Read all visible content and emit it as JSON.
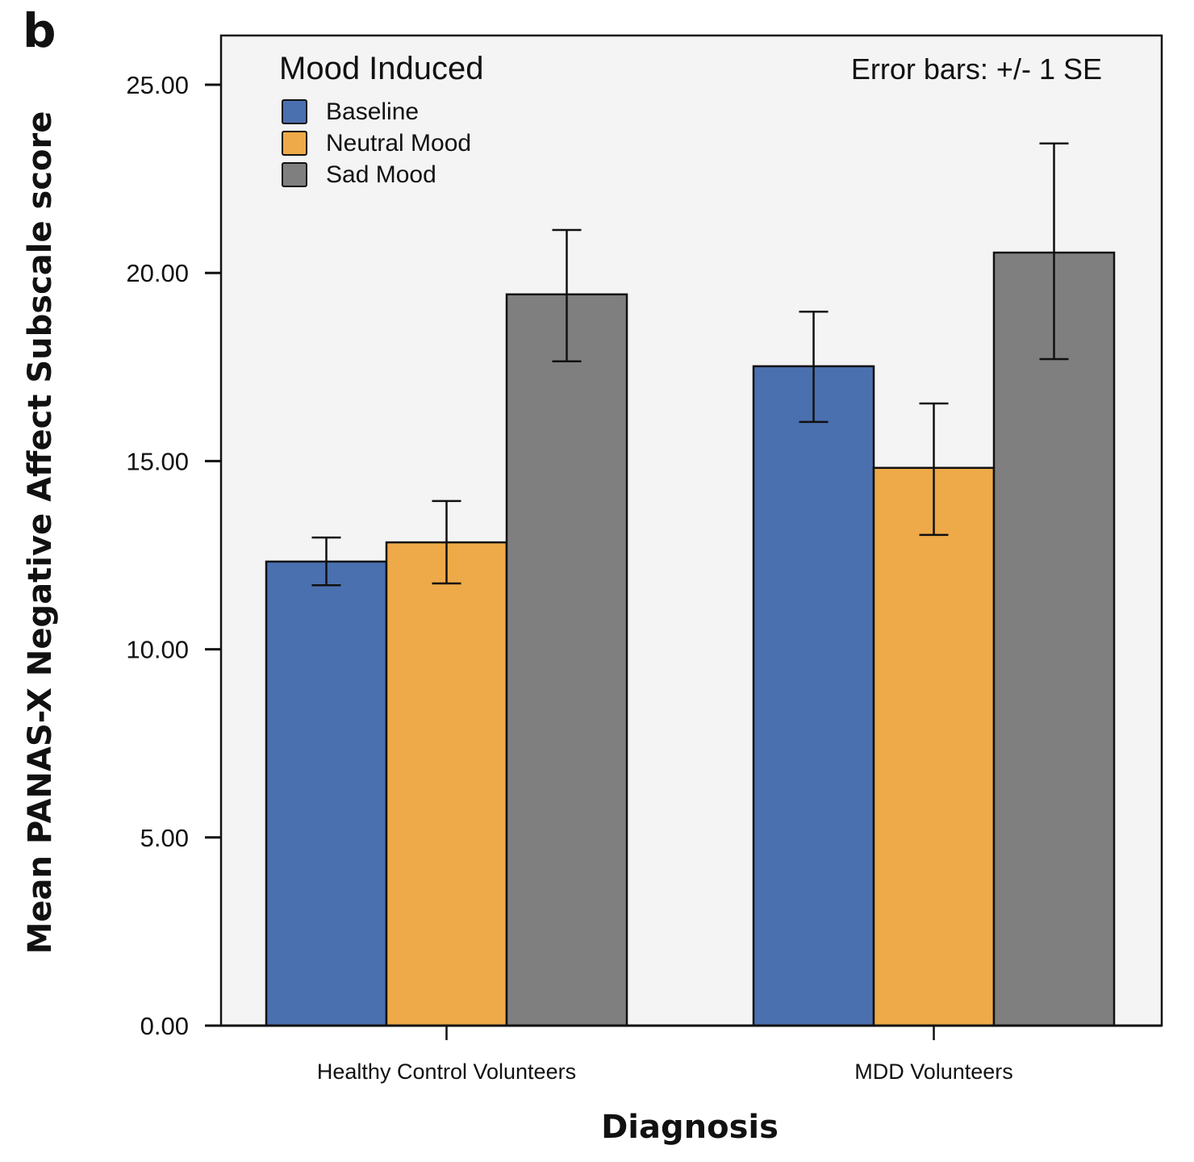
{
  "panel_label": "b",
  "chart_data": {
    "type": "bar",
    "title": "",
    "xlabel": "Diagnosis",
    "ylabel": "Mean PANAS-X Negative Affect Subscale score",
    "ylim": [
      0,
      26.2
    ],
    "yticks": [
      0,
      5,
      10,
      15,
      20,
      25
    ],
    "ytick_labels": [
      "0.00",
      "5.00",
      "10.00",
      "15.00",
      "20.00",
      "25.00"
    ],
    "categories": [
      "Healthy Control Volunteers",
      "MDD Volunteers"
    ],
    "legend": {
      "title": "Mood Induced",
      "placement": "top-left"
    },
    "annotation": "Error bars: +/- 1 SE",
    "grid": false,
    "series": [
      {
        "name": "Baseline",
        "color": "#4a70b0",
        "values": [
          12.33,
          17.52
        ],
        "err_low": [
          11.7,
          16.04
        ],
        "err_high": [
          12.97,
          18.97
        ]
      },
      {
        "name": "Neutral Mood",
        "color": "#eeaa48",
        "values": [
          12.84,
          14.82
        ],
        "err_low": [
          11.75,
          13.04
        ],
        "err_high": [
          13.94,
          16.53
        ]
      },
      {
        "name": "Sad Mood",
        "color": "#7f7f7f",
        "values": [
          19.43,
          20.54
        ],
        "err_low": [
          17.65,
          17.71
        ],
        "err_high": [
          21.14,
          23.44
        ]
      }
    ],
    "plot_background": "#f4f4f4"
  }
}
